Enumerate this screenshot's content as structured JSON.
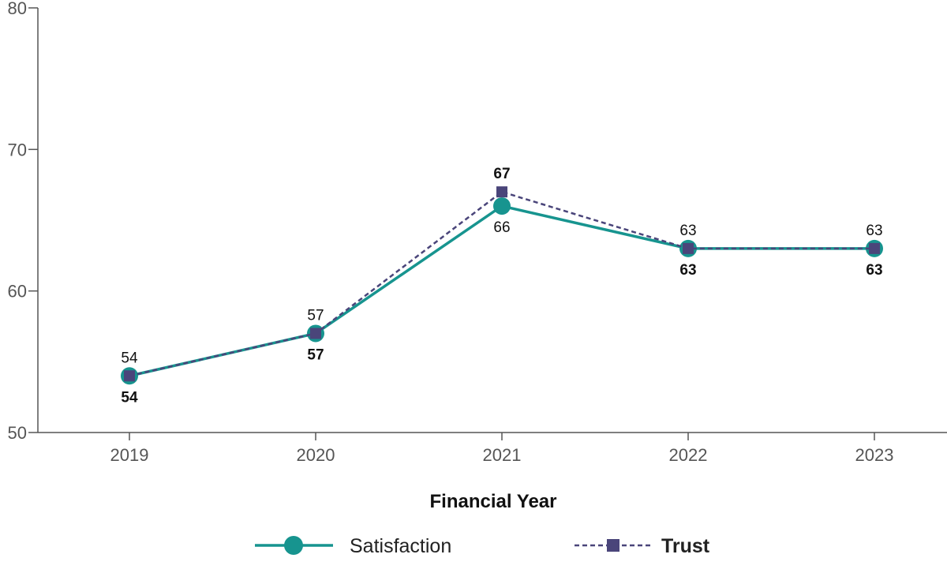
{
  "chart_data": {
    "type": "line",
    "xlabel": "Financial Year",
    "ylabel": "",
    "ylim": [
      50,
      80
    ],
    "yticks": [
      50,
      60,
      70,
      80
    ],
    "categories": [
      "2019",
      "2020",
      "2021",
      "2022",
      "2023"
    ],
    "grid": false,
    "legend_position": "bottom",
    "series": [
      {
        "name": "Satisfaction",
        "values": [
          54,
          57,
          66,
          63,
          63
        ],
        "color": "#17948f",
        "line_style": "solid",
        "marker": "circle",
        "label_weight": "normal"
      },
      {
        "name": "Trust",
        "values": [
          54,
          57,
          67,
          63,
          63
        ],
        "color": "#4a457a",
        "line_style": "dashed",
        "marker": "square",
        "label_weight": "bold"
      }
    ]
  }
}
